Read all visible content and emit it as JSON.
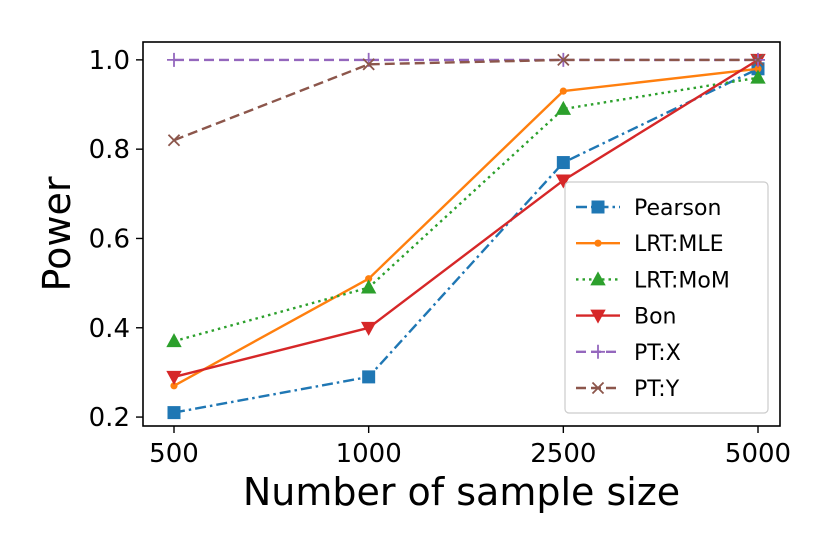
{
  "chart_data": {
    "type": "line",
    "title": "",
    "xlabel": "Number of sample size",
    "ylabel": "Power",
    "categories": [
      "500",
      "1000",
      "2500",
      "5000"
    ],
    "ylim": [
      0.18,
      1.04
    ],
    "yticks": [
      "0.2",
      "0.4",
      "0.6",
      "0.8",
      "1.0"
    ],
    "ytick_values": [
      0.2,
      0.4,
      0.6,
      0.8,
      1.0
    ],
    "grid": false,
    "legend_position": "center-right",
    "series": [
      {
        "name": "Pearson",
        "values": [
          0.21,
          0.29,
          0.77,
          0.98
        ],
        "color": "#1f77b4",
        "dash": "dashdot",
        "marker": "square"
      },
      {
        "name": "LRT:MLE",
        "values": [
          0.27,
          0.51,
          0.93,
          0.98
        ],
        "color": "#ff7f0e",
        "dash": "solid",
        "marker": "dot"
      },
      {
        "name": "LRT:MoM",
        "values": [
          0.37,
          0.49,
          0.89,
          0.96
        ],
        "color": "#2ca02c",
        "dash": "dotted",
        "marker": "triangle-up"
      },
      {
        "name": "Bon",
        "values": [
          0.29,
          0.4,
          0.73,
          1.0
        ],
        "color": "#d62728",
        "dash": "solid",
        "marker": "triangle-down"
      },
      {
        "name": "PT:X",
        "values": [
          1.0,
          1.0,
          1.0,
          1.0
        ],
        "color": "#9467bd",
        "dash": "dashed",
        "marker": "plus"
      },
      {
        "name": "PT:Y",
        "values": [
          0.82,
          0.99,
          1.0,
          1.0
        ],
        "color": "#8c564b",
        "dash": "dashed",
        "marker": "x"
      }
    ]
  }
}
